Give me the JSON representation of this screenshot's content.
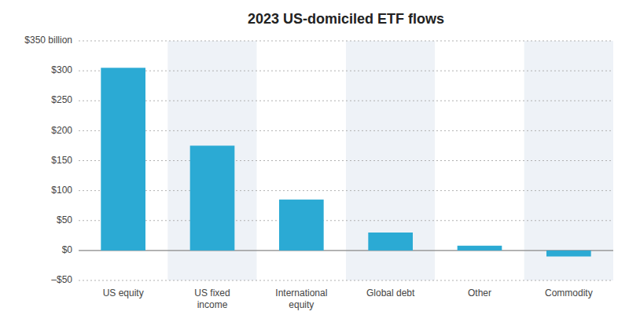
{
  "chart_data": {
    "type": "bar",
    "title": "2023 US-domiciled ETF flows",
    "categories": [
      "US equity",
      "US fixed\nincome",
      "International\nequity",
      "Global debt",
      "Other",
      "Commodity"
    ],
    "values": [
      305,
      175,
      85,
      30,
      8,
      -10
    ],
    "color": "#2baad4",
    "ylim": [
      -50,
      350
    ],
    "yticks": [
      {
        "value": -50,
        "label": "–$50"
      },
      {
        "value": 0,
        "label": "$0"
      },
      {
        "value": 50,
        "label": "$50"
      },
      {
        "value": 100,
        "label": "$100"
      },
      {
        "value": 150,
        "label": "$150"
      },
      {
        "value": 200,
        "label": "$200"
      },
      {
        "value": 250,
        "label": "$250"
      },
      {
        "value": 300,
        "label": "$300"
      },
      {
        "value": 350,
        "label": "$350 billion"
      }
    ],
    "grid": true
  }
}
